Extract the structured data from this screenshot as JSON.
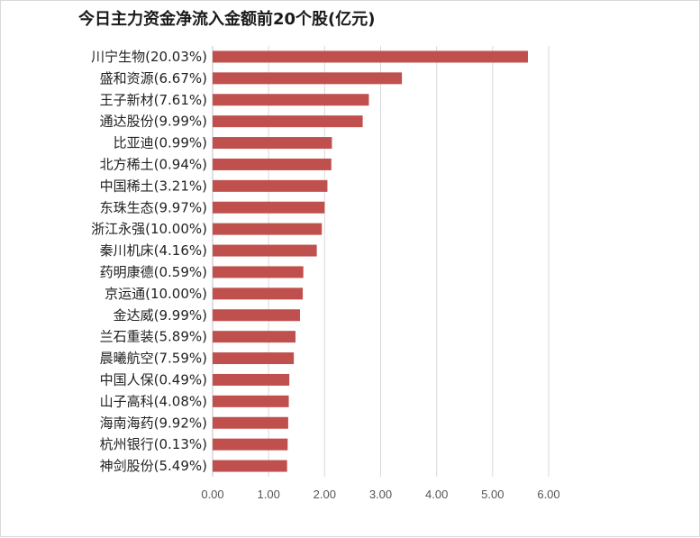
{
  "chart_data": {
    "type": "bar",
    "orientation": "horizontal",
    "title": "今日主力资金净流入金额前20个股(亿元)",
    "xlabel": "",
    "ylabel": "",
    "xlim": [
      0,
      6
    ],
    "grid": true,
    "bar_color": "#c0504d",
    "categories": [
      "川宁生物(20.03%)",
      "盛和资源(6.67%)",
      "王子新材(7.61%)",
      "通达股份(9.99%)",
      "比亚迪(0.99%)",
      "北方稀土(0.94%)",
      "中国稀土(3.21%)",
      "东珠生态(9.97%)",
      "浙江永强(10.00%)",
      "秦川机床(4.16%)",
      "药明康德(0.59%)",
      "京运通(10.00%)",
      "金达威(9.99%)",
      "兰石重装(5.89%)",
      "晨曦航空(7.59%)",
      "中国人保(0.49%)",
      "山子高科(4.08%)",
      "海南海药(9.92%)",
      "杭州银行(0.13%)",
      "神剑股份(5.49%)"
    ],
    "values": [
      5.63,
      3.38,
      2.79,
      2.68,
      2.13,
      2.12,
      2.05,
      2.0,
      1.95,
      1.86,
      1.62,
      1.61,
      1.56,
      1.48,
      1.45,
      1.37,
      1.36,
      1.35,
      1.34,
      1.33
    ],
    "ticks": [
      "0.00",
      "1.00",
      "2.00",
      "3.00",
      "4.00",
      "5.00",
      "6.00"
    ]
  }
}
